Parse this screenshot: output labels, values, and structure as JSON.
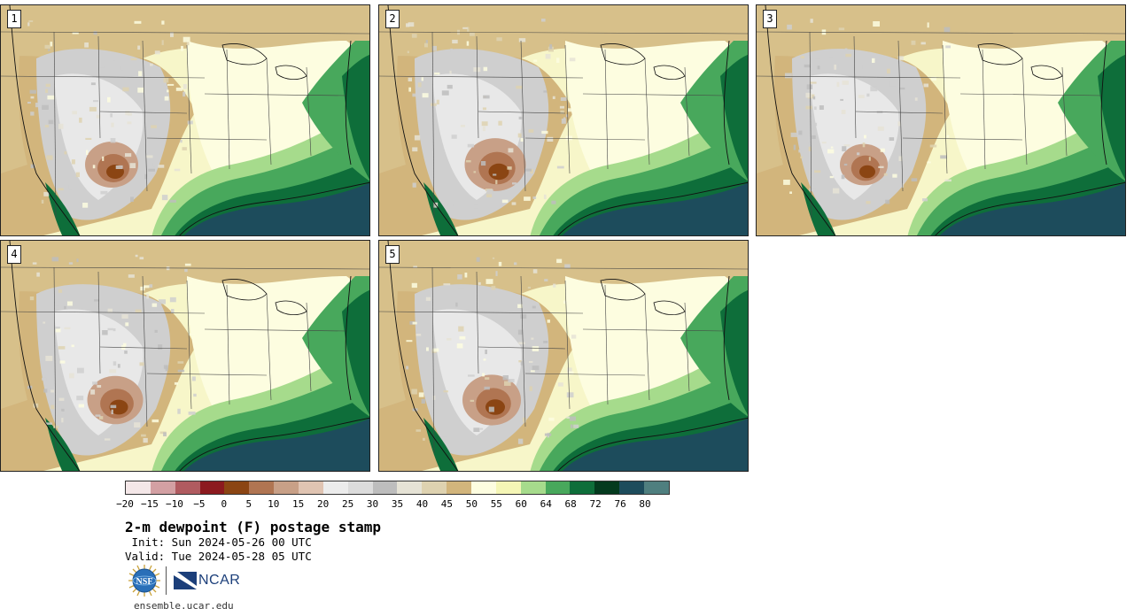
{
  "panels": [
    {
      "label": "1"
    },
    {
      "label": "2"
    },
    {
      "label": "3"
    },
    {
      "label": "4"
    },
    {
      "label": "5"
    }
  ],
  "colorbar": {
    "colors": [
      "#f4e7e8",
      "#d3a0a3",
      "#b05b60",
      "#8c1a1f",
      "#8b4513",
      "#b07552",
      "#c8a087",
      "#e0c4b2",
      "#ececec",
      "#dcdcdc",
      "#bdbdbd",
      "#e6e3d6",
      "#ded2b0",
      "#d2b57c",
      "#fdfde0",
      "#f5f6b6",
      "#a6db8c",
      "#48a85c",
      "#0e6e3a",
      "#043a1e",
      "#1d4c5c",
      "#4f7f7f"
    ],
    "tick_labels": [
      "−20",
      "−15",
      "−10",
      "−5",
      "0",
      "5",
      "10",
      "15",
      "20",
      "25",
      "30",
      "35",
      "40",
      "45",
      "50",
      "55",
      "60",
      "64",
      "68",
      "72",
      "76",
      "80"
    ]
  },
  "title": "2-m dewpoint (F) postage stamp",
  "init": " Init: Sun 2024-05-26 00 UTC",
  "valid": "Valid: Tue 2024-05-28 05 UTC",
  "logos": {
    "nsf": "NSF",
    "ncar": "NCAR"
  },
  "site": "ensemble.ucar.edu"
}
